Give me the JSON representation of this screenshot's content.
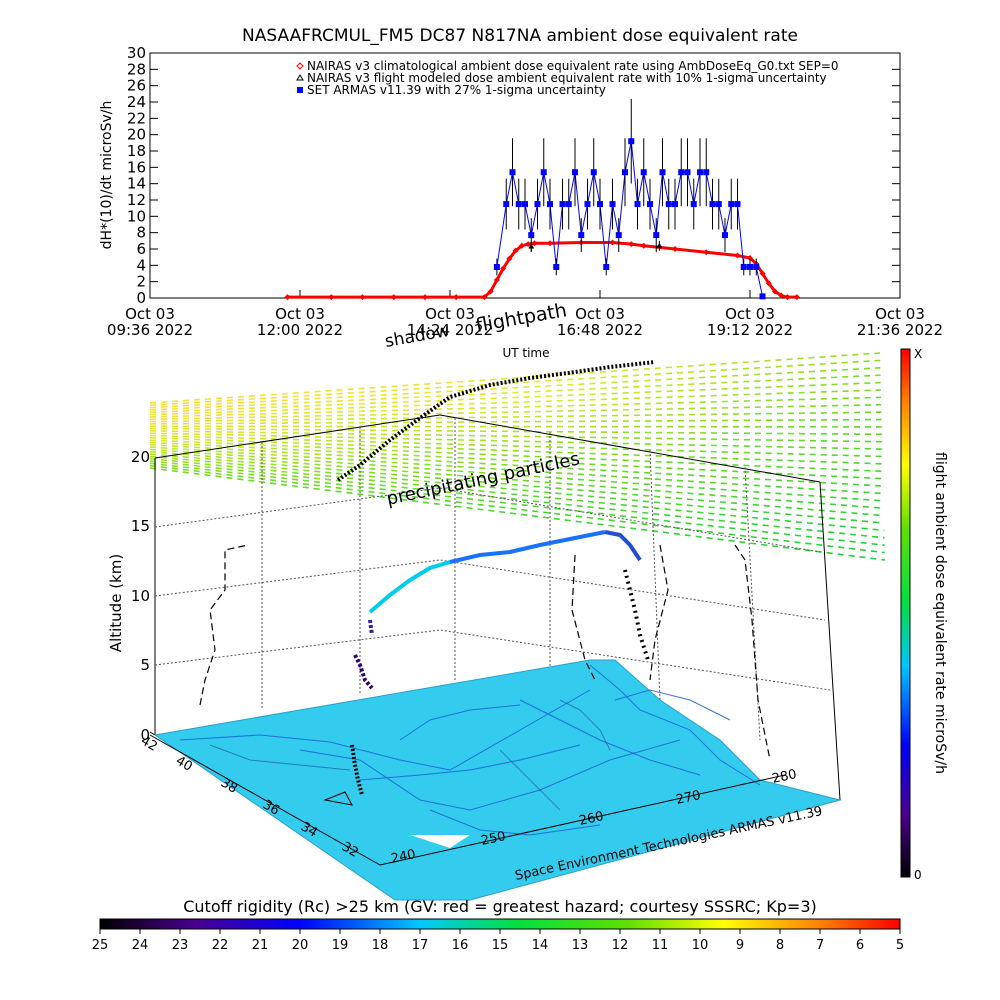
{
  "chart_data": [
    {
      "type": "line",
      "title": "NASAAFRCMUL_FM5 DC87 N817NA ambient dose equivalent rate",
      "ylabel": "dH*(10)/dt microSv/h",
      "xlabel": "UT time",
      "ylim": [
        0,
        30
      ],
      "yticks": [
        0,
        2,
        4,
        6,
        8,
        10,
        12,
        14,
        16,
        18,
        20,
        22,
        24,
        26,
        28,
        30
      ],
      "xlim_hours": [
        9.6,
        21.6
      ],
      "xticks": [
        {
          "h": 9.6,
          "line1": "Oct 03",
          "line2": "09:36 2022"
        },
        {
          "h": 12.0,
          "line1": "Oct 03",
          "line2": "12:00 2022"
        },
        {
          "h": 14.4,
          "line1": "Oct 03",
          "line2": "14:24 2022"
        },
        {
          "h": 16.8,
          "line1": "Oct 03",
          "line2": "16:48 2022"
        },
        {
          "h": 19.2,
          "line1": "Oct 03",
          "line2": "19:12 2022"
        },
        {
          "h": 21.6,
          "line1": "Oct 03",
          "line2": "21:36 2022"
        }
      ],
      "legend": [
        {
          "text": "NAIRAS v3 climatological ambient dose equivalent rate using AmbDoseEq_G0.txt SEP=0",
          "color": "#ff0000",
          "marker": "diamond"
        },
        {
          "text": "NAIRAS v3 flight modeled dose ambient equivalent rate with 10% 1-sigma uncertainty",
          "color": "#000000",
          "marker": "triangle"
        },
        {
          "text": "SET ARMAS v11.39 with 27% 1-sigma uncertainty",
          "color": "#0000ff",
          "marker": "square"
        }
      ],
      "series": [
        {
          "name": "NAIRAS v3 climatological ambient dose equivalent rate using AmbDoseEq_G0.txt SEP=0",
          "color": "#ff0000",
          "x_hours": [
            11.8,
            12.5,
            13.0,
            13.5,
            14.0,
            14.5,
            14.95,
            15.05,
            15.15,
            15.25,
            15.35,
            15.45,
            15.55,
            15.65,
            15.75,
            16.0,
            16.5,
            17.0,
            17.3,
            17.5,
            18.0,
            18.5,
            19.0,
            19.2,
            19.3,
            19.4,
            19.5,
            19.6,
            19.7,
            19.8,
            19.95
          ],
          "values": [
            0.1,
            0.1,
            0.1,
            0.1,
            0.1,
            0.1,
            0.1,
            0.8,
            2.2,
            3.6,
            4.8,
            5.8,
            6.4,
            6.6,
            6.7,
            6.7,
            6.8,
            6.8,
            6.6,
            6.4,
            6.0,
            5.6,
            5.2,
            4.9,
            4.2,
            3.0,
            1.8,
            0.8,
            0.3,
            0.1,
            0.1
          ]
        },
        {
          "name": "NAIRAS v3 flight modeled dose ambient equivalent rate with 10% 1-sigma uncertainty",
          "color": "#000000",
          "x_hours": [
            15.7,
            17.75
          ],
          "values": [
            6.3,
            6.4
          ]
        },
        {
          "name": "SET ARMAS v11.39 with 27% 1-sigma uncertainty",
          "color": "#0000ff",
          "x_hours": [
            15.15,
            15.3,
            15.4,
            15.5,
            15.6,
            15.7,
            15.8,
            15.9,
            16.0,
            16.1,
            16.2,
            16.3,
            16.4,
            16.5,
            16.6,
            16.7,
            16.8,
            16.9,
            17.0,
            17.1,
            17.2,
            17.3,
            17.4,
            17.5,
            17.6,
            17.7,
            17.8,
            17.9,
            18.0,
            18.1,
            18.2,
            18.3,
            18.4,
            18.5,
            18.6,
            18.7,
            18.8,
            18.9,
            19.0,
            19.1,
            19.2,
            19.3,
            19.4
          ],
          "values": [
            3.8,
            11.5,
            15.4,
            11.5,
            11.5,
            7.7,
            11.5,
            15.4,
            11.5,
            3.8,
            11.5,
            11.5,
            15.4,
            7.7,
            11.5,
            15.4,
            11.5,
            3.8,
            11.5,
            7.7,
            15.4,
            19.2,
            11.5,
            15.4,
            11.5,
            7.7,
            15.4,
            11.5,
            11.5,
            15.4,
            15.4,
            11.5,
            15.4,
            15.4,
            11.5,
            11.5,
            7.7,
            11.5,
            11.5,
            3.8,
            3.8,
            3.8,
            0.2
          ]
        }
      ]
    },
    {
      "type": "other",
      "subtype": "3d-flight-track-map",
      "annotation_flightpath": "flightpath",
      "annotation_shadow": "shadow",
      "annotation_particles": "precipitating particles",
      "zlabel": "Altitude (km)",
      "zticks": [
        "0",
        "5",
        "10",
        "15",
        "20"
      ],
      "lat_ticks": [
        "42",
        "40",
        "38",
        "36",
        "34",
        "32"
      ],
      "lon_ticks": [
        "240",
        "250",
        "260",
        "270",
        "280"
      ],
      "credit": "Space Environment Technologies ARMAS v11.39",
      "dose_colorbar_label": "flight ambient dose equivalent rate microSv/h",
      "dose_colorbar_max": "X",
      "dose_colorbar_min": "0"
    },
    {
      "type": "colorbar",
      "title": "Cutoff rigidity (Rc) >25 km (GV: red = greatest hazard; courtesy SSSRC; Kp=3)",
      "ticks": [
        "25",
        "24",
        "23",
        "22",
        "21",
        "20",
        "19",
        "18",
        "17",
        "16",
        "15",
        "14",
        "13",
        "12",
        "11",
        "10",
        "9",
        "8",
        "7",
        "6",
        "5"
      ]
    }
  ]
}
